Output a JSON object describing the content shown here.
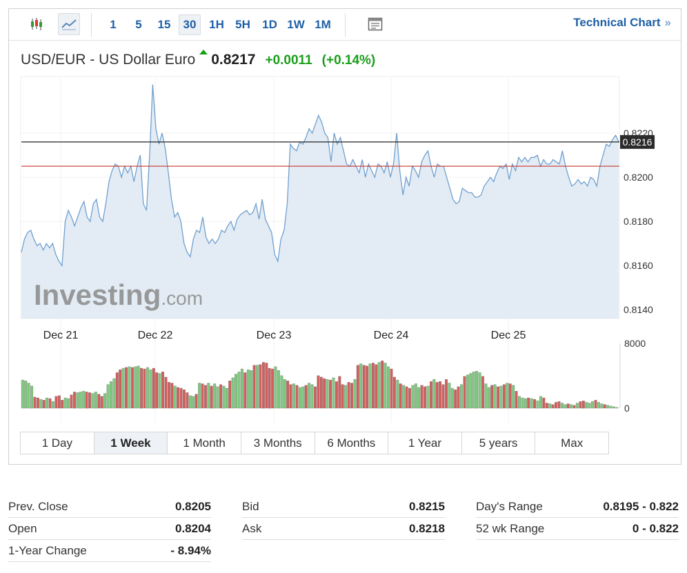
{
  "toolbar": {
    "icons": [
      "candlestick-chart-icon",
      "line-chart-icon",
      "table-icon"
    ],
    "timeframes": [
      "1",
      "5",
      "15",
      "30",
      "1H",
      "5H",
      "1D",
      "1W",
      "1M"
    ],
    "active_timeframe": "30",
    "technical_chart_label": "Technical Chart",
    "technical_chart_arrow": "»"
  },
  "quote": {
    "name": "USD/EUR - US Dollar Euro",
    "price": "0.8217",
    "change": "+0.0011",
    "change_pct": "(+0.14%)",
    "up_color": "#1a9e1a"
  },
  "chart_data": {
    "type": "area",
    "x": [
      "Dec 21",
      "Dec 22",
      "Dec 23",
      "Dec 24",
      "Dec 25"
    ],
    "xlabel": "",
    "ylabel": "",
    "y_ticks": [
      "0.8220",
      "0.8200",
      "0.8180",
      "0.8160",
      "0.8140"
    ],
    "ylim": [
      0.8136,
      0.8245
    ],
    "current_value_label": "0.8216",
    "current_value": 0.8216,
    "prev_close_line": 0.8205,
    "watermark": "Investing.com",
    "price_series": [
      0.8166,
      0.8172,
      0.8175,
      0.8176,
      0.8172,
      0.8169,
      0.817,
      0.8167,
      0.817,
      0.8168,
      0.817,
      0.8165,
      0.8162,
      0.816,
      0.818,
      0.8185,
      0.8182,
      0.8178,
      0.8182,
      0.8186,
      0.8189,
      0.8182,
      0.818,
      0.8188,
      0.819,
      0.8182,
      0.818,
      0.8188,
      0.8198,
      0.8203,
      0.8206,
      0.8205,
      0.82,
      0.8205,
      0.8202,
      0.8205,
      0.8198,
      0.8205,
      0.821,
      0.8188,
      0.8185,
      0.821,
      0.8242,
      0.8222,
      0.8215,
      0.822,
      0.8213,
      0.8202,
      0.819,
      0.8182,
      0.8184,
      0.818,
      0.817,
      0.8166,
      0.8164,
      0.8172,
      0.8176,
      0.8175,
      0.8182,
      0.8173,
      0.817,
      0.8172,
      0.817,
      0.8172,
      0.8176,
      0.8175,
      0.8178,
      0.818,
      0.8176,
      0.8181,
      0.8183,
      0.8184,
      0.8185,
      0.8183,
      0.8184,
      0.8188,
      0.8181,
      0.819,
      0.8181,
      0.8178,
      0.8175,
      0.8165,
      0.8162,
      0.8172,
      0.8176,
      0.8188,
      0.8215,
      0.8213,
      0.8212,
      0.8216,
      0.8215,
      0.8218,
      0.8222,
      0.822,
      0.8224,
      0.8228,
      0.8225,
      0.822,
      0.8218,
      0.8207,
      0.822,
      0.8215,
      0.8218,
      0.8212,
      0.8206,
      0.8205,
      0.8208,
      0.8205,
      0.8202,
      0.8208,
      0.82,
      0.8206,
      0.8203,
      0.82,
      0.8206,
      0.8205,
      0.8202,
      0.8207,
      0.82,
      0.8206,
      0.822,
      0.8203,
      0.8192,
      0.82,
      0.8196,
      0.8205,
      0.8203,
      0.82,
      0.8207,
      0.821,
      0.8212,
      0.8205,
      0.82,
      0.8206,
      0.8205,
      0.8205,
      0.82,
      0.8195,
      0.819,
      0.8188,
      0.8189,
      0.8195,
      0.8194,
      0.8193,
      0.8193,
      0.8191,
      0.8191,
      0.8192,
      0.8196,
      0.8198,
      0.82,
      0.8198,
      0.8202,
      0.8205,
      0.8204,
      0.8206,
      0.8199,
      0.8206,
      0.8203,
      0.8209,
      0.8207,
      0.8209,
      0.8207,
      0.8209,
      0.8209,
      0.821,
      0.8205,
      0.8208,
      0.8206,
      0.8206,
      0.8208,
      0.8207,
      0.8206,
      0.8212,
      0.8205,
      0.82,
      0.8196,
      0.8197,
      0.8199,
      0.8197,
      0.8198,
      0.8196,
      0.82,
      0.8199,
      0.8196,
      0.8205,
      0.821,
      0.8215,
      0.8214,
      0.8217,
      0.8219,
      0.8216
    ],
    "volume_ylim": [
      0,
      8000
    ],
    "volume_ticks": [
      "8000",
      "0"
    ],
    "volume_series": [
      3800,
      3700,
      3400,
      3000,
      1500,
      1400,
      1200,
      1100,
      1400,
      1300,
      900,
      1600,
      1700,
      1100,
      1400,
      1300,
      1800,
      2200,
      2100,
      2200,
      2300,
      2200,
      2100,
      2000,
      2200,
      1900,
      1600,
      2000,
      3200,
      3600,
      4000,
      4800,
      5200,
      5400,
      5500,
      5600,
      5500,
      5600,
      5700,
      5400,
      5300,
      5500,
      5200,
      5400,
      4800,
      4700,
      4900,
      4200,
      3500,
      3400,
      3000,
      2800,
      2700,
      2500,
      2100,
      1700,
      1600,
      1900,
      3400,
      3300,
      3100,
      3400,
      3000,
      3300,
      2900,
      3200,
      3000,
      2700,
      3700,
      4100,
      4600,
      4900,
      5300,
      4800,
      5200,
      5100,
      5800,
      5800,
      5900,
      6200,
      6100,
      5400,
      5300,
      5600,
      5100,
      4400,
      3900,
      3700,
      3200,
      3300,
      3100,
      2800,
      2900,
      3100,
      3400,
      3200,
      2900,
      4400,
      4200,
      4000,
      3900,
      3800,
      4100,
      3600,
      4300,
      3200,
      3100,
      3500,
      3400,
      3900,
      5800,
      6000,
      5800,
      5700,
      6000,
      6100,
      5900,
      6200,
      6400,
      6100,
      5600,
      5300,
      4200,
      3800,
      3300,
      3100,
      2900,
      2700,
      3100,
      3300,
      2800,
      3100,
      2900,
      3000,
      3600,
      3900,
      3500,
      3600,
      3200,
      3900,
      3400,
      2700,
      2500,
      2900,
      3200,
      4300,
      4500,
      4700,
      4900,
      5000,
      4800,
      4300,
      3300,
      2800,
      3100,
      3200,
      2900,
      3000,
      3200,
      3400,
      3300,
      3100,
      2300,
      1600,
      1400,
      1300,
      1400,
      1300,
      1200,
      1000,
      1600,
      1400,
      700,
      600,
      500,
      800,
      900,
      700,
      500,
      600,
      500,
      400,
      700,
      900,
      1000,
      800,
      700,
      900,
      1100,
      800,
      600,
      500,
      400,
      300,
      200,
      100
    ]
  },
  "range_tabs": [
    "1 Day",
    "1 Week",
    "1 Month",
    "3 Months",
    "6 Months",
    "1 Year",
    "5 years",
    "Max"
  ],
  "active_range": "1 Week",
  "stats": {
    "col1": [
      {
        "label": "Prev. Close",
        "value": "0.8205"
      },
      {
        "label": "Open",
        "value": "0.8204"
      },
      {
        "label": "1-Year Change",
        "value": "- 8.94%"
      }
    ],
    "col2": [
      {
        "label": "Bid",
        "value": "0.8215"
      },
      {
        "label": "Ask",
        "value": "0.8218"
      }
    ],
    "col3": [
      {
        "label": "Day's Range",
        "value": "0.8195 - 0.822"
      },
      {
        "label": "52 wk Range",
        "value": "0 - 0.822"
      }
    ]
  },
  "colors": {
    "line": "#6f9fcf",
    "area_fill": "#e3ecf4",
    "prev_close_line": "#c8322f",
    "current_line": "#222222",
    "vol_up": "#7fc97f",
    "vol_down": "#d0605e",
    "link": "#1e5fa6"
  }
}
